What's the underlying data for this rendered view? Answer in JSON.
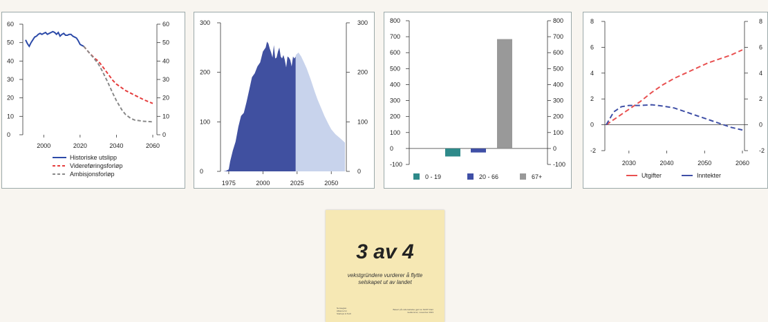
{
  "charts": [
    {
      "type": "line",
      "left_axis_ticks": [
        "60",
        "50",
        "40",
        "30",
        "20",
        "10",
        "0"
      ],
      "right_axis_ticks": [
        "60",
        "50",
        "40",
        "30",
        "20",
        "10",
        "0"
      ],
      "x_ticks": [
        "2000",
        "2020",
        "2040",
        "2060"
      ],
      "legend": [
        "Historiske utslipp",
        "Videreføringsforløp",
        "Ambisjonsforløp"
      ],
      "colors": {
        "hist": "#2c4aa8",
        "vid": "#e53c3c",
        "amb": "#888888"
      }
    },
    {
      "type": "area",
      "left_axis_ticks": [
        "300",
        "200",
        "100",
        "0"
      ],
      "right_axis_ticks": [
        "300",
        "200",
        "100",
        "0"
      ],
      "x_ticks": [
        "1975",
        "2000",
        "2025",
        "2050"
      ],
      "colors": {
        "hist": "#4050a0",
        "proj": "#c8d3ec"
      }
    },
    {
      "type": "bar",
      "left_axis_ticks": [
        "800",
        "700",
        "600",
        "500",
        "400",
        "300",
        "200",
        "100",
        "0",
        "-100"
      ],
      "right_axis_ticks": [
        "800",
        "700",
        "600",
        "500",
        "400",
        "300",
        "200",
        "100",
        "0",
        "-100"
      ],
      "legend": [
        "0 - 19",
        "20 - 66",
        "67+"
      ],
      "colors": [
        "#2e8a8a",
        "#3f4fa6",
        "#999999"
      ]
    },
    {
      "type": "line",
      "left_axis_ticks": [
        "8",
        "6",
        "4",
        "2",
        "0",
        "-2"
      ],
      "right_axis_ticks": [
        "8",
        "6",
        "4",
        "2",
        "0",
        "-2"
      ],
      "x_ticks": [
        "2030",
        "2040",
        "2050",
        "2060"
      ],
      "legend": [
        "Utgifter",
        "Inntekter"
      ],
      "colors": {
        "utg": "#e85050",
        "inn": "#3f4fa6"
      }
    }
  ],
  "chart_data": [
    {
      "type": "line",
      "ylim": [
        0,
        60
      ],
      "xlim": [
        1990,
        2060
      ],
      "series": [
        {
          "name": "Historiske utslipp",
          "style": "solid",
          "x": [
            1990,
            1991,
            1992,
            1993,
            1994,
            1995,
            1996,
            1997,
            1998,
            1999,
            2000,
            2001,
            2002,
            2003,
            2004,
            2005,
            2006,
            2007,
            2008,
            2009,
            2010,
            2011,
            2012,
            2013,
            2014,
            2015,
            2016,
            2017,
            2018,
            2019,
            2020,
            2021,
            2022
          ],
          "y": [
            51.5,
            49.5,
            48.0,
            50.0,
            51.5,
            53.0,
            53.5,
            54.5,
            55.0,
            54.5,
            55.0,
            55.5,
            54.5,
            55.0,
            55.5,
            56.0,
            55.5,
            54.5,
            55.5,
            53.5,
            54.5,
            55.0,
            54.0,
            54.0,
            54.5,
            54.5,
            53.5,
            53.0,
            52.5,
            51.0,
            49.0,
            48.5,
            48.0
          ]
        },
        {
          "name": "Videreføringsforløp",
          "style": "dashed",
          "x": [
            2022,
            2025,
            2028,
            2030,
            2032,
            2035,
            2038,
            2040,
            2045,
            2050,
            2055,
            2060
          ],
          "y": [
            48.0,
            44.5,
            41.5,
            40.0,
            37.5,
            33.5,
            29.5,
            27.5,
            24.0,
            21.5,
            19.0,
            17.0
          ]
        },
        {
          "name": "Ambisjonsforløp",
          "style": "dashed",
          "x": [
            2022,
            2025,
            2028,
            2030,
            2032,
            2035,
            2038,
            2040,
            2043,
            2045,
            2048,
            2050,
            2055,
            2060
          ],
          "y": [
            48.0,
            44.5,
            41.0,
            38.5,
            35.0,
            29.0,
            22.5,
            18.5,
            13.5,
            11.0,
            8.8,
            8.0,
            7.3,
            7.0
          ]
        }
      ]
    },
    {
      "type": "area",
      "ylim": [
        0,
        300
      ],
      "xlim": [
        1971,
        2060
      ],
      "series": [
        {
          "name": "",
          "part": "historical",
          "x": [
            1971,
            1973,
            1975,
            1976,
            1978,
            1980,
            1982,
            1984,
            1986,
            1988,
            1990,
            1992,
            1994,
            1996,
            1998,
            2000,
            2002,
            2003,
            2004,
            2005,
            2006,
            2007,
            2008,
            2009,
            2010,
            2011,
            2012,
            2013,
            2014,
            2015,
            2016,
            2017,
            2018,
            2019,
            2020,
            2021,
            2022,
            2023,
            2024
          ],
          "y": [
            0,
            1,
            4,
            20,
            42,
            60,
            90,
            112,
            118,
            140,
            165,
            190,
            198,
            212,
            220,
            242,
            250,
            262,
            258,
            248,
            240,
            230,
            255,
            228,
            230,
            242,
            250,
            232,
            228,
            235,
            225,
            210,
            232,
            230,
            225,
            212,
            232,
            228,
            232
          ]
        },
        {
          "name": "",
          "part": "projection",
          "x": [
            2024,
            2026,
            2028,
            2030,
            2032,
            2035,
            2038,
            2040,
            2043,
            2045,
            2048,
            2050,
            2053,
            2056,
            2058,
            2060
          ],
          "y": [
            235,
            240,
            232,
            220,
            208,
            185,
            160,
            145,
            125,
            112,
            95,
            85,
            75,
            68,
            63,
            58
          ]
        }
      ]
    },
    {
      "type": "bar",
      "ylim": [
        -100,
        800
      ],
      "categories": [
        "0 - 19",
        "20 - 66",
        "67+"
      ],
      "values": [
        -50,
        -25,
        685
      ]
    },
    {
      "type": "line",
      "ylim": [
        -2,
        8
      ],
      "xlim": [
        2024,
        2060
      ],
      "series": [
        {
          "name": "Utgifter",
          "style": "dashed",
          "x": [
            2024,
            2026,
            2028,
            2030,
            2033,
            2036,
            2039,
            2042,
            2045,
            2048,
            2051,
            2054,
            2057,
            2060
          ],
          "y": [
            0,
            0.4,
            0.8,
            1.2,
            1.8,
            2.5,
            3.1,
            3.6,
            4.0,
            4.4,
            4.8,
            5.1,
            5.4,
            5.8
          ]
        },
        {
          "name": "Inntekter",
          "style": "dashed",
          "x": [
            2024,
            2026,
            2028,
            2030,
            2033,
            2036,
            2039,
            2042,
            2045,
            2048,
            2051,
            2054,
            2057,
            2060
          ],
          "y": [
            0,
            1.0,
            1.4,
            1.5,
            1.5,
            1.55,
            1.45,
            1.3,
            1.0,
            0.7,
            0.4,
            0.1,
            -0.2,
            -0.4
          ]
        }
      ]
    }
  ],
  "poster": {
    "headline": "3 av 4",
    "subtitle": "vekstgründere vurderer å flytte selskapet ut av landet",
    "footer_left": [
      "Norwegian",
      "Alliance for",
      "Startups & Tech"
    ],
    "footer_right": [
      "Basert på undersøkelse gjort av NAST blant",
      "medlemmer, november 2023"
    ]
  }
}
